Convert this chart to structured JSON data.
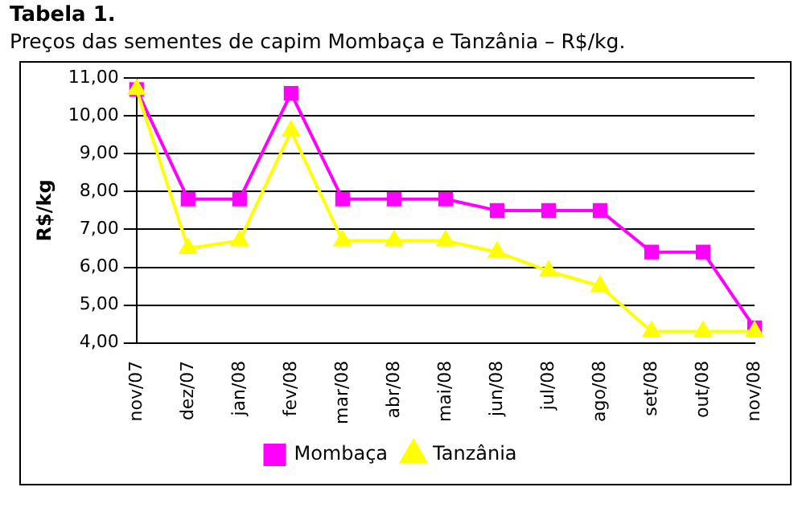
{
  "chart_data": {
    "type": "line",
    "title": "Tabela 1.",
    "subtitle": "Preços das sementes de capim Mombaça e Tanzânia – R$/kg.",
    "ylabel": "R$/kg",
    "categories": [
      "nov/07",
      "dez/07",
      "jan/08",
      "fev/08",
      "mar/08",
      "abr/08",
      "mai/08",
      "jun/08",
      "jul/08",
      "ago/08",
      "set/08",
      "out/08",
      "nov/08"
    ],
    "series": [
      {
        "name": "Mombaça",
        "color": "#ff00ff",
        "marker": "square",
        "values": [
          10.7,
          7.8,
          7.8,
          10.6,
          7.8,
          7.8,
          7.8,
          7.5,
          7.5,
          7.5,
          6.4,
          6.4,
          4.4
        ]
      },
      {
        "name": "Tanzânia",
        "color": "#ffff00",
        "marker": "triangle",
        "values": [
          10.7,
          6.5,
          6.7,
          9.6,
          6.7,
          6.7,
          6.7,
          6.4,
          5.9,
          5.5,
          4.3,
          4.3,
          4.3
        ]
      }
    ],
    "ylim": [
      4,
      11
    ],
    "yticks": [
      {
        "value": 4,
        "label": "4,00"
      },
      {
        "value": 5,
        "label": "5,00"
      },
      {
        "value": 6,
        "label": "6,00"
      },
      {
        "value": 7,
        "label": "7,00"
      },
      {
        "value": 8,
        "label": "8,00"
      },
      {
        "value": 9,
        "label": "9,00"
      },
      {
        "value": 10,
        "label": "10,00"
      },
      {
        "value": 11,
        "label": "11,00"
      }
    ],
    "grid": "y",
    "legend": "bottom",
    "line_style": "solid"
  }
}
